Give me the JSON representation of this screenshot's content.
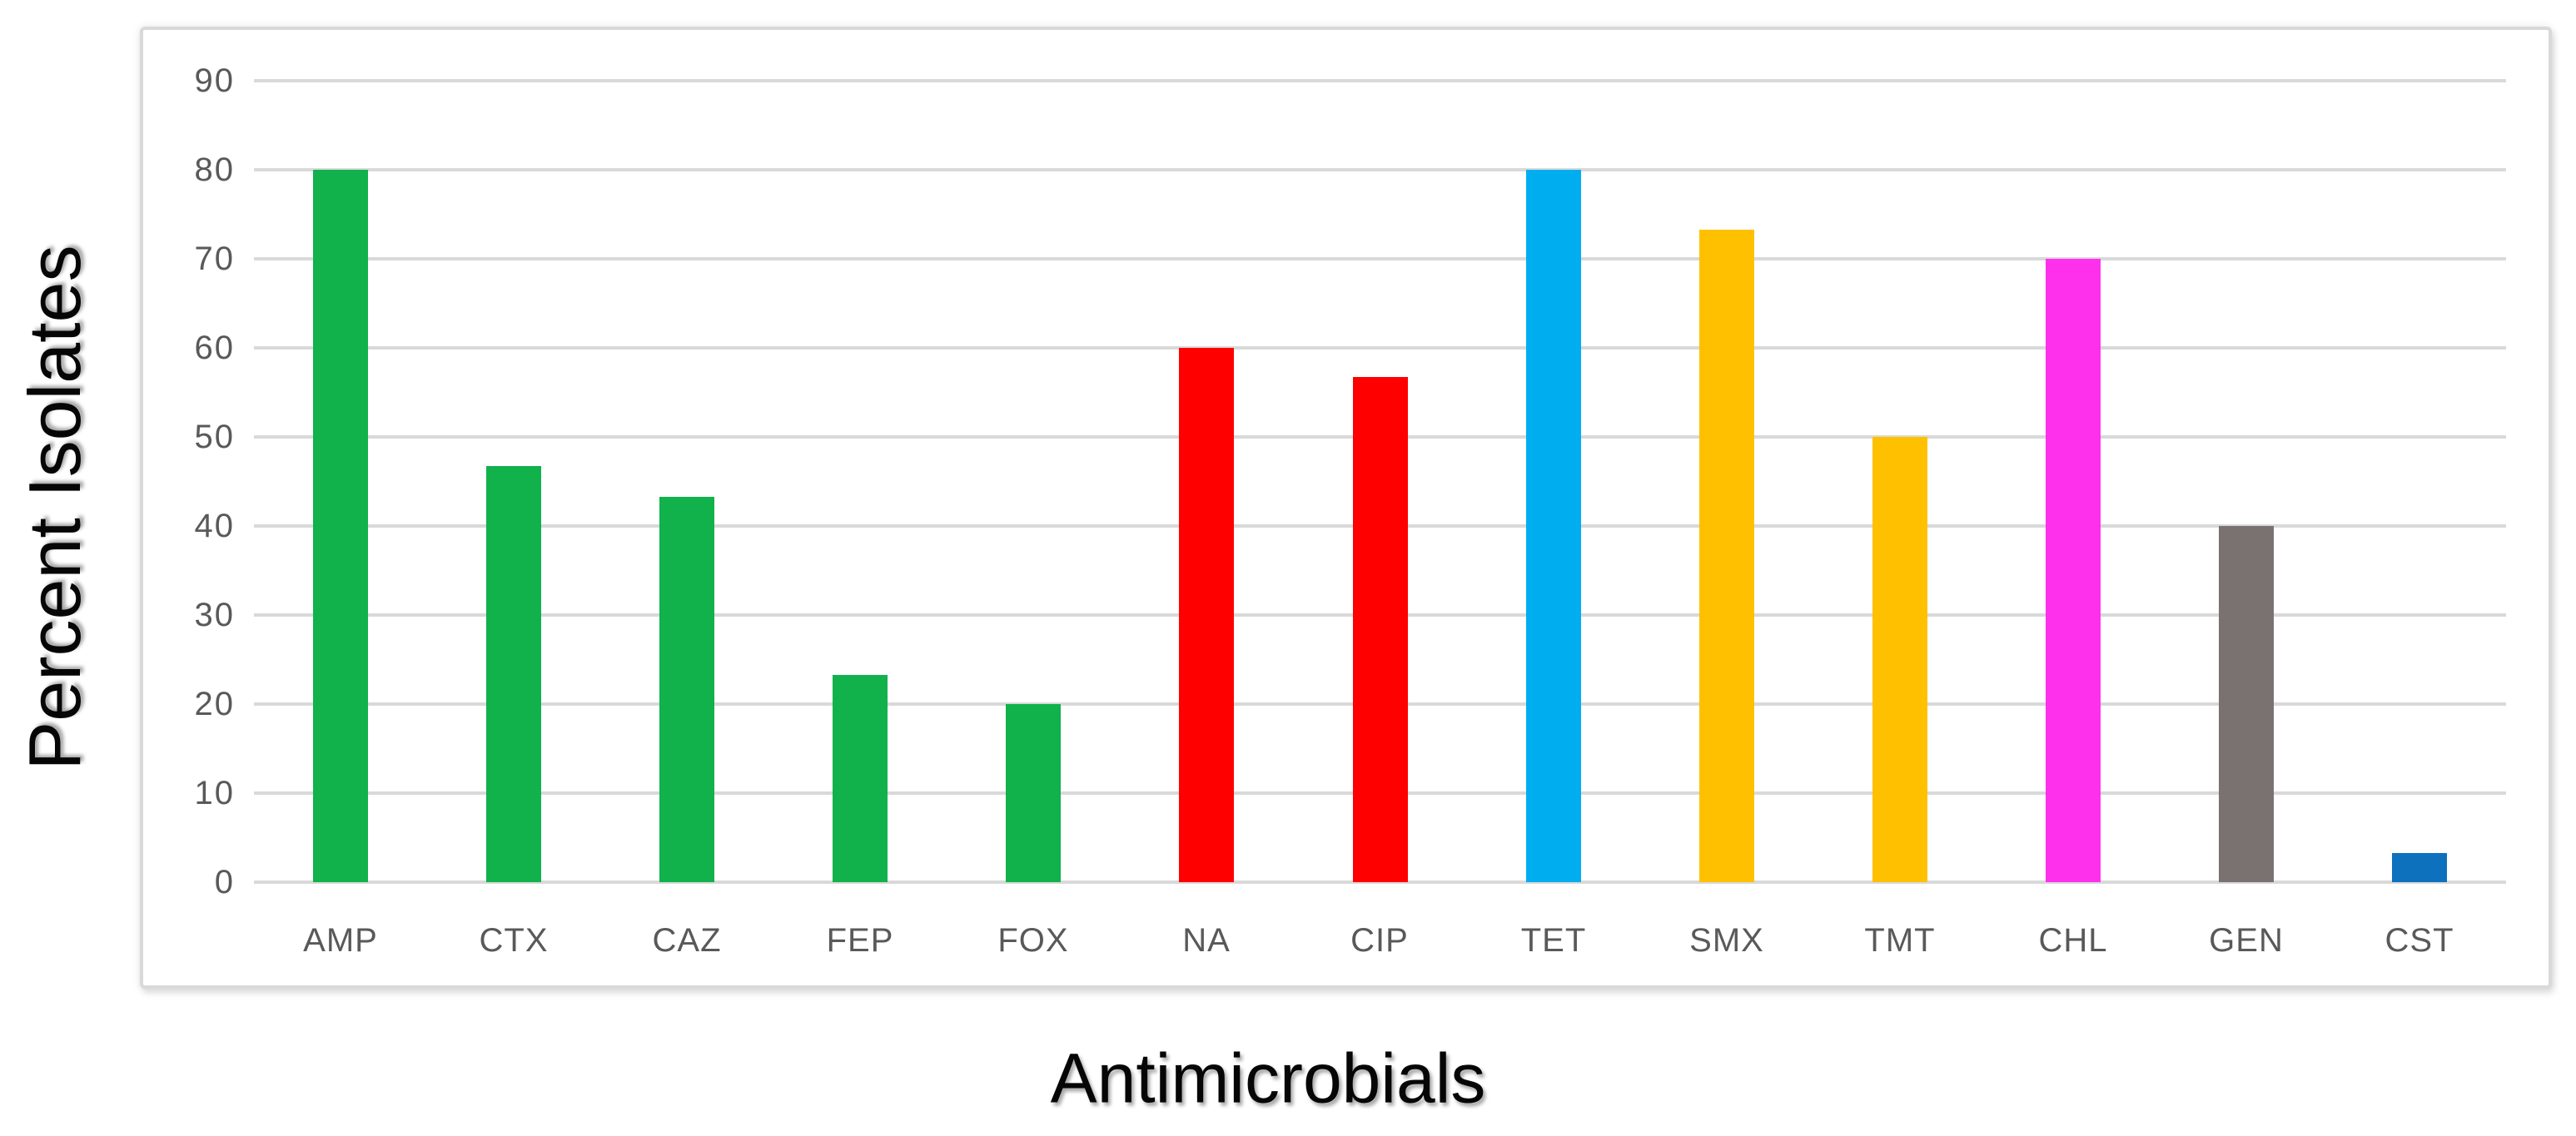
{
  "chart_data": {
    "type": "bar",
    "title": "",
    "xlabel": "Antimicrobials",
    "ylabel": "Percent Isolates",
    "categories": [
      "AMP",
      "CTX",
      "CAZ",
      "FEP",
      "FOX",
      "NA",
      "CIP",
      "TET",
      "SMX",
      "TMT",
      "CHL",
      "GEN",
      "CST"
    ],
    "values": [
      80,
      46.7,
      43.3,
      23.3,
      20,
      60,
      56.7,
      80,
      73.3,
      50,
      70,
      40,
      3.3
    ],
    "bar_colors": [
      "#11B14C",
      "#11B14C",
      "#11B14C",
      "#11B14C",
      "#11B14C",
      "#FF0000",
      "#FF0000",
      "#00AEEF",
      "#FFC000",
      "#FFC000",
      "#FF30EB",
      "#7A7270",
      "#0D71BE"
    ],
    "yticks": [
      0,
      10,
      20,
      30,
      40,
      50,
      60,
      70,
      80,
      90
    ],
    "ylim": [
      0,
      93
    ],
    "grid": true,
    "legend_position": "none"
  },
  "colors": {
    "gridline": "#D9D9D9",
    "axis_text": "#595959",
    "plot_border": "#D9D9D9",
    "background": "#FFFFFF",
    "title_text": "#060606"
  }
}
